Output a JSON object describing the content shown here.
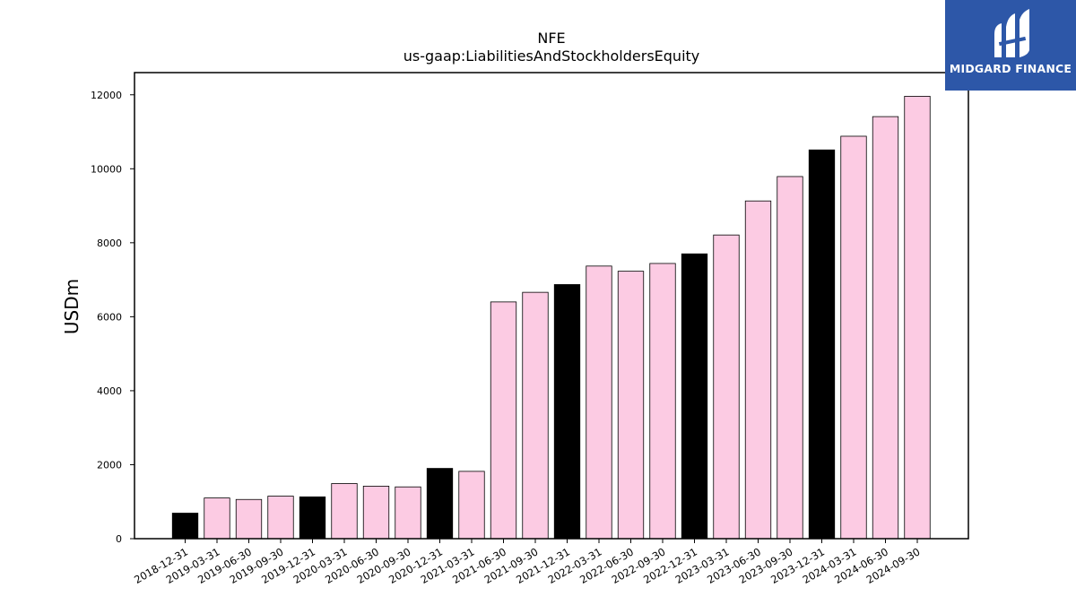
{
  "chart_data": {
    "type": "bar",
    "title": "NFE",
    "subtitle": "us-gaap:LiabilitiesAndStockholdersEquity",
    "ylabel": "USDm",
    "xlabel": "",
    "ylim": [
      0,
      12600
    ],
    "yticks": [
      0,
      2000,
      4000,
      6000,
      8000,
      10000,
      12000
    ],
    "grid": false,
    "categories": [
      "2018-12-31",
      "2019-03-31",
      "2019-06-30",
      "2019-09-30",
      "2019-12-31",
      "2020-03-31",
      "2020-06-30",
      "2020-09-30",
      "2020-12-31",
      "2021-03-31",
      "2021-06-30",
      "2021-09-30",
      "2021-12-31",
      "2022-03-31",
      "2022-06-30",
      "2022-09-30",
      "2022-12-31",
      "2023-03-31",
      "2023-06-30",
      "2023-09-30",
      "2023-12-31",
      "2024-03-31",
      "2024-06-30",
      "2024-09-30"
    ],
    "values": [
      690,
      1100,
      1060,
      1150,
      1130,
      1490,
      1420,
      1400,
      1900,
      1820,
      6400,
      6660,
      6870,
      7370,
      7230,
      7440,
      7700,
      8210,
      9130,
      9790,
      10510,
      10880,
      11410,
      11960
    ],
    "fiscal_year_end_flags": [
      true,
      false,
      false,
      false,
      true,
      false,
      false,
      false,
      true,
      false,
      false,
      false,
      true,
      false,
      false,
      false,
      true,
      false,
      false,
      false,
      true,
      false,
      false,
      false
    ],
    "colors": {
      "quarter": "#fccbe3",
      "year_end": "#000000",
      "edge": "#000000"
    }
  },
  "logo": {
    "name": "MIDGARD FINANCE",
    "background": "#2d57a8",
    "icon": "midgard-logo-icon"
  }
}
